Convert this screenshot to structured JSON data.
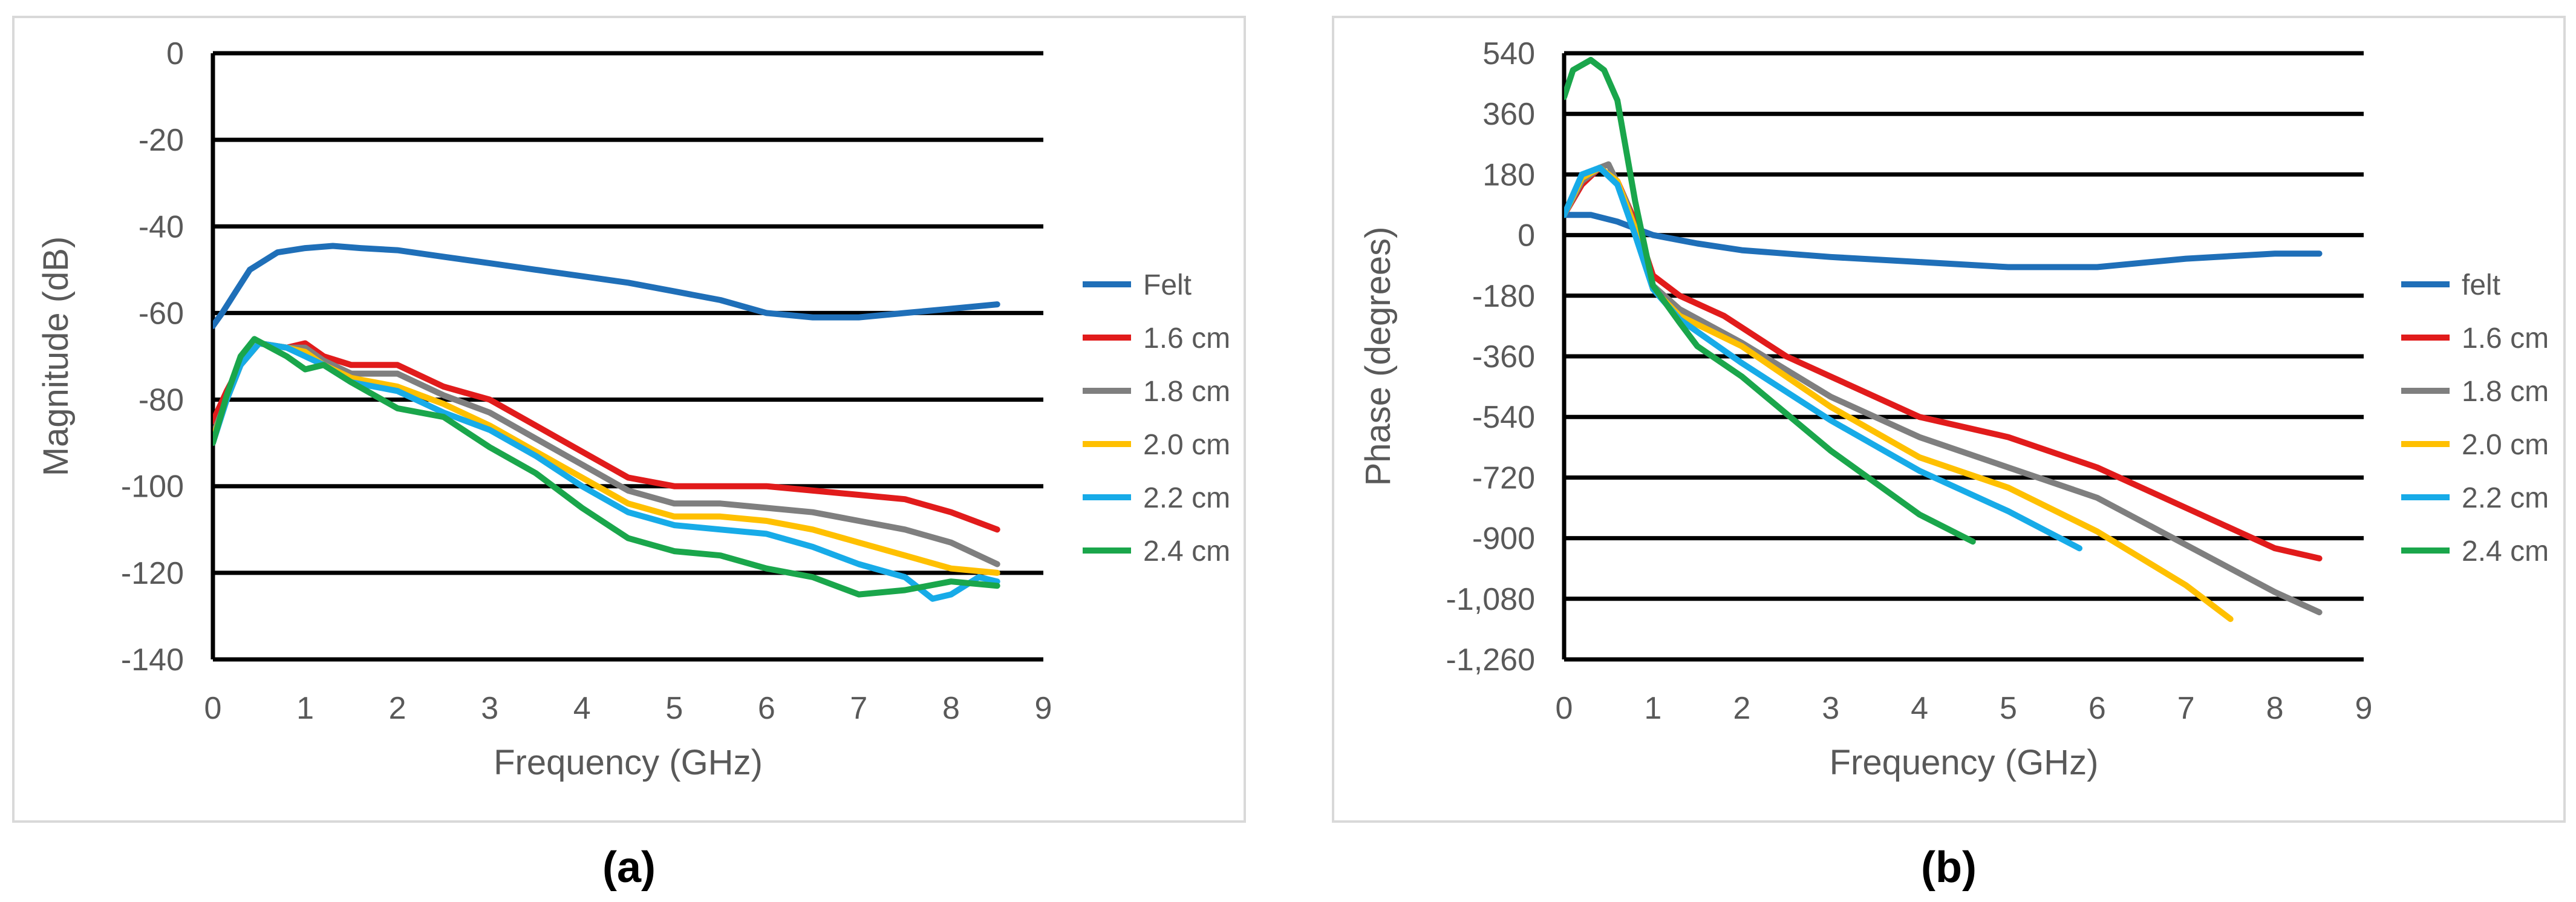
{
  "figure": {
    "panel_labels": [
      "(a)",
      "(b)"
    ]
  },
  "colors": {
    "felt": "#1f6fb8",
    "1.6 cm": "#e11b1b",
    "1.8 cm": "#7f7f7f",
    "2.0 cm": "#ffc000",
    "2.2 cm": "#17abe8",
    "2.4 cm": "#1aa64b"
  },
  "chart_data": [
    {
      "type": "line",
      "panel_label": "(a)",
      "title": "",
      "xlabel": "Frequency (GHz)",
      "ylabel": "Magnitude (dB)",
      "xlim": [
        0,
        9
      ],
      "ylim": [
        -140,
        0
      ],
      "xticks": [
        0,
        1,
        2,
        3,
        4,
        5,
        6,
        7,
        8,
        9
      ],
      "yticks": [
        0,
        -20,
        -40,
        -60,
        -80,
        -100,
        -120,
        -140
      ],
      "ytick_labels": [
        "0",
        "-20",
        "-40",
        "-60",
        "-80",
        "-100",
        "-120",
        "-140"
      ],
      "grid": true,
      "legend_position": "right",
      "series": [
        {
          "name": "Felt",
          "x": [
            0,
            0.1,
            0.25,
            0.4,
            0.7,
            1.0,
            1.3,
            1.6,
            2.0,
            2.5,
            3.0,
            3.5,
            4.0,
            4.5,
            5.0,
            5.5,
            6.0,
            6.5,
            7.0,
            7.5,
            8.0,
            8.5
          ],
          "y": [
            -63,
            -60,
            -55,
            -50,
            -46,
            -45,
            -44.5,
            -45,
            -45.5,
            -47,
            -48.5,
            -50,
            -51.5,
            -53,
            -55,
            -57,
            -60,
            -61,
            -61,
            -60,
            -59,
            -58
          ]
        },
        {
          "name": "1.6 cm",
          "x": [
            0,
            0.15,
            0.3,
            0.5,
            0.8,
            1.0,
            1.2,
            1.5,
            2.0,
            2.5,
            3.0,
            3.5,
            4.0,
            4.5,
            5.0,
            5.5,
            6.0,
            6.5,
            7.0,
            7.5,
            8.0,
            8.5
          ],
          "y": [
            -85,
            -78,
            -72,
            -67,
            -68,
            -67,
            -70,
            -72,
            -72,
            -77,
            -80,
            -86,
            -92,
            -98,
            -100,
            -100,
            -100,
            -101,
            -102,
            -103,
            -106,
            -110
          ]
        },
        {
          "name": "1.8 cm",
          "x": [
            0,
            0.15,
            0.3,
            0.5,
            0.8,
            1.0,
            1.2,
            1.5,
            2.0,
            2.5,
            3.0,
            3.5,
            4.0,
            4.5,
            5.0,
            5.5,
            6.0,
            6.5,
            7.0,
            7.5,
            8.0,
            8.5
          ],
          "y": [
            -88,
            -80,
            -72,
            -67,
            -68,
            -68,
            -71,
            -74,
            -74,
            -79,
            -83,
            -89,
            -95,
            -101,
            -104,
            -104,
            -105,
            -106,
            -108,
            -110,
            -113,
            -118
          ]
        },
        {
          "name": "2.0 cm",
          "x": [
            0,
            0.15,
            0.3,
            0.5,
            0.8,
            1.0,
            1.2,
            1.5,
            2.0,
            2.5,
            3.0,
            3.5,
            4.0,
            4.5,
            5.0,
            5.5,
            6.0,
            6.5,
            7.0,
            7.5,
            8.0,
            8.5
          ],
          "y": [
            -89,
            -80,
            -72,
            -67,
            -68,
            -69,
            -72,
            -75,
            -77,
            -81,
            -86,
            -92,
            -98,
            -104,
            -107,
            -107,
            -108,
            -110,
            -113,
            -116,
            -119,
            -120
          ]
        },
        {
          "name": "2.2 cm",
          "x": [
            0,
            0.15,
            0.3,
            0.5,
            0.8,
            1.0,
            1.2,
            1.5,
            2.0,
            2.5,
            3.0,
            3.5,
            4.0,
            4.5,
            5.0,
            5.5,
            6.0,
            6.5,
            7.0,
            7.5,
            7.8,
            8.0,
            8.3,
            8.5
          ],
          "y": [
            -90,
            -80,
            -72,
            -67,
            -68,
            -70,
            -72,
            -76,
            -78,
            -83,
            -87,
            -93,
            -100,
            -106,
            -109,
            -110,
            -111,
            -114,
            -118,
            -121,
            -126,
            -125,
            -121,
            -122
          ]
        },
        {
          "name": "2.4 cm",
          "x": [
            0,
            0.15,
            0.3,
            0.45,
            0.8,
            1.0,
            1.2,
            1.5,
            2.0,
            2.5,
            3.0,
            3.5,
            4.0,
            4.5,
            5.0,
            5.5,
            6.0,
            6.5,
            7.0,
            7.5,
            8.0,
            8.5
          ],
          "y": [
            -90,
            -79,
            -70,
            -66,
            -70,
            -73,
            -72,
            -76,
            -82,
            -84,
            -91,
            -97,
            -105,
            -112,
            -115,
            -116,
            -119,
            -121,
            -125,
            -124,
            -122,
            -123
          ]
        }
      ]
    },
    {
      "type": "line",
      "panel_label": "(b)",
      "title": "",
      "xlabel": "Frequency (GHz)",
      "ylabel": "Phase (degrees)",
      "xlim": [
        0,
        9
      ],
      "ylim": [
        -1260,
        540
      ],
      "xticks": [
        0,
        1,
        2,
        3,
        4,
        5,
        6,
        7,
        8,
        9
      ],
      "yticks": [
        540,
        360,
        180,
        0,
        -180,
        -360,
        -540,
        -720,
        -900,
        -1080,
        -1260
      ],
      "ytick_labels": [
        "540",
        "360",
        "180",
        "0",
        "-180",
        "-360",
        "-540",
        "-720",
        "-900",
        "-1,080",
        "-1,260"
      ],
      "grid": true,
      "legend_position": "right",
      "series": [
        {
          "name": "felt",
          "x": [
            0,
            0.3,
            0.6,
            1.0,
            1.5,
            2.0,
            3.0,
            4.0,
            5.0,
            6.0,
            7.0,
            8.0,
            8.5
          ],
          "y": [
            60,
            60,
            40,
            0,
            -25,
            -45,
            -65,
            -80,
            -95,
            -95,
            -70,
            -55,
            -55
          ]
        },
        {
          "name": "1.6 cm",
          "x": [
            0,
            0.2,
            0.4,
            0.6,
            0.8,
            1.0,
            1.3,
            1.8,
            2.5,
            3.0,
            4.0,
            5.0,
            6.0,
            7.0,
            8.0,
            8.5
          ],
          "y": [
            60,
            150,
            200,
            160,
            40,
            -120,
            -180,
            -240,
            -360,
            -420,
            -540,
            -600,
            -690,
            -810,
            -930,
            -960
          ]
        },
        {
          "name": "1.8 cm",
          "x": [
            0,
            0.2,
            0.4,
            0.5,
            0.7,
            1.0,
            1.3,
            2.0,
            3.0,
            4.0,
            5.0,
            6.0,
            7.0,
            8.0,
            8.5
          ],
          "y": [
            60,
            160,
            200,
            210,
            100,
            -150,
            -220,
            -320,
            -480,
            -600,
            -690,
            -780,
            -920,
            -1060,
            -1120
          ]
        },
        {
          "name": "2.0 cm",
          "x": [
            0,
            0.2,
            0.4,
            0.6,
            0.8,
            1.0,
            1.3,
            2.0,
            3.0,
            4.0,
            5.0,
            6.0,
            7.0,
            7.5
          ],
          "y": [
            60,
            170,
            200,
            160,
            20,
            -160,
            -240,
            -330,
            -510,
            -660,
            -750,
            -880,
            -1040,
            -1140
          ]
        },
        {
          "name": "2.2 cm",
          "x": [
            0,
            0.2,
            0.4,
            0.6,
            0.8,
            1.0,
            1.3,
            2.0,
            3.0,
            4.0,
            5.0,
            5.8
          ],
          "y": [
            60,
            180,
            200,
            150,
            0,
            -160,
            -250,
            -380,
            -550,
            -700,
            -820,
            -930
          ]
        },
        {
          "name": "2.4 cm",
          "x": [
            0,
            0.1,
            0.3,
            0.45,
            0.6,
            0.8,
            1.0,
            1.3,
            1.5,
            2.0,
            3.0,
            4.0,
            4.6
          ],
          "y": [
            410,
            490,
            520,
            490,
            400,
            100,
            -150,
            -260,
            -330,
            -420,
            -640,
            -830,
            -910
          ]
        }
      ]
    }
  ]
}
